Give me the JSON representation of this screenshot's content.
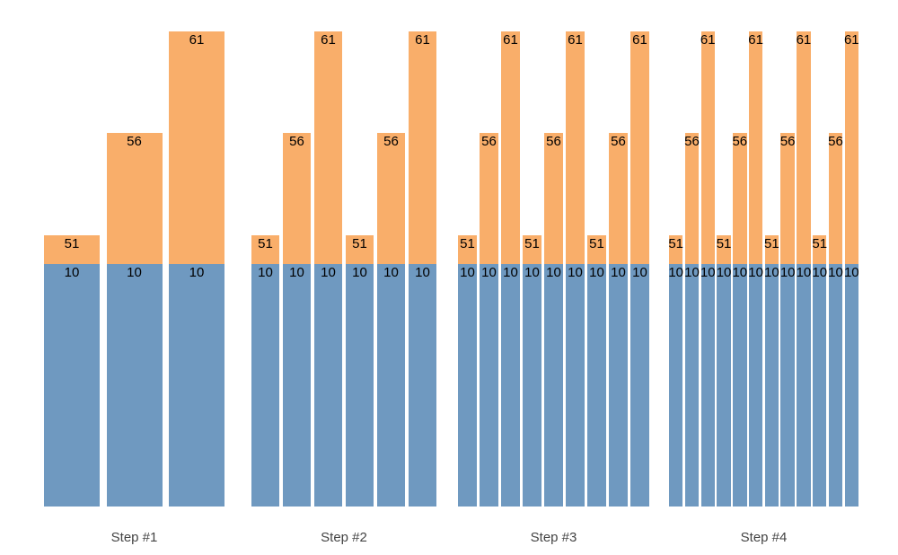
{
  "chart_data": {
    "type": "bar",
    "subtype": "grouped-stacked",
    "title": "",
    "legend": "none",
    "grid": false,
    "y_axis": "hidden",
    "colors": {
      "top_segment": "#F9AE6A",
      "base_segment": "#6F99C0",
      "value_label": "#000000",
      "axis_label": "#444444",
      "background": "#FFFFFF"
    },
    "x_axis_labels": [
      "Step #1",
      "Step #2",
      "Step #3",
      "Step #4"
    ],
    "groups": [
      {
        "label": "Step #1",
        "bars": [
          {
            "base": 10,
            "total": 51
          },
          {
            "base": 10,
            "total": 56
          },
          {
            "base": 10,
            "total": 61
          }
        ]
      },
      {
        "label": "Step #2",
        "bars": [
          {
            "base": 10,
            "total": 51
          },
          {
            "base": 10,
            "total": 56
          },
          {
            "base": 10,
            "total": 61
          },
          {
            "base": 10,
            "total": 51
          },
          {
            "base": 10,
            "total": 56
          },
          {
            "base": 10,
            "total": 61
          }
        ]
      },
      {
        "label": "Step #3",
        "bars": [
          {
            "base": 10,
            "total": 51
          },
          {
            "base": 10,
            "total": 56
          },
          {
            "base": 10,
            "total": 61
          },
          {
            "base": 10,
            "total": 51
          },
          {
            "base": 10,
            "total": 56
          },
          {
            "base": 10,
            "total": 61
          },
          {
            "base": 10,
            "total": 51
          },
          {
            "base": 10,
            "total": 56
          },
          {
            "base": 10,
            "total": 61
          }
        ]
      },
      {
        "label": "Step #4",
        "bars": [
          {
            "base": 10,
            "total": 51
          },
          {
            "base": 10,
            "total": 56
          },
          {
            "base": 10,
            "total": 61
          },
          {
            "base": 10,
            "total": 51
          },
          {
            "base": 10,
            "total": 56
          },
          {
            "base": 10,
            "total": 61
          },
          {
            "base": 10,
            "total": 51
          },
          {
            "base": 10,
            "total": 56
          },
          {
            "base": 10,
            "total": 61
          },
          {
            "base": 10,
            "total": 51
          },
          {
            "base": 10,
            "total": 56
          },
          {
            "base": 10,
            "total": 61
          }
        ]
      }
    ]
  }
}
